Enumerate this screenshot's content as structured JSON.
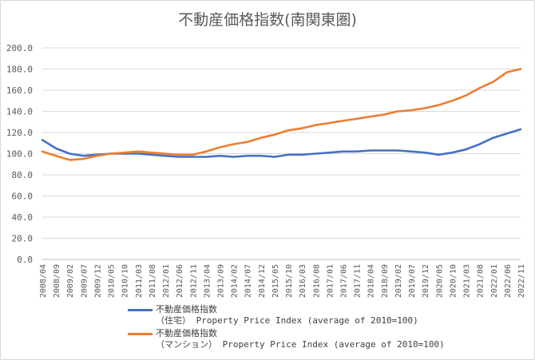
{
  "chart_data": {
    "type": "line",
    "title": "不動産価格指数(南関東圏)",
    "xlabel": "",
    "ylabel": "",
    "ylim": [
      0,
      200
    ],
    "yticks": [
      "0.0",
      "20.0",
      "40.0",
      "60.0",
      "80.0",
      "100.0",
      "120.0",
      "140.0",
      "160.0",
      "180.0",
      "200.0"
    ],
    "grid": true,
    "legend_position": "bottom",
    "x_start": "2008/04",
    "x_end": "2022/11",
    "x_tick_labels": [
      "2008/04",
      "2008/09",
      "2009/02",
      "2009/07",
      "2009/12",
      "2010/05",
      "2010/10",
      "2011/03",
      "2011/08",
      "2012/01",
      "2012/06",
      "2012/11",
      "2013/04",
      "2013/09",
      "2014/02",
      "2014/07",
      "2014/12",
      "2015/05",
      "2015/10",
      "2016/03",
      "2016/08",
      "2017/01",
      "2017/06",
      "2017/11",
      "2018/04",
      "2018/09",
      "2019/02",
      "2019/07",
      "2019/12",
      "2020/05",
      "2020/10",
      "2021/03",
      "2021/08",
      "2022/01",
      "2022/06",
      "2022/11"
    ],
    "series": [
      {
        "name_lines": [
          "不動産価格指数",
          "（住宅） Property Price Index (average of 2010=100)"
        ],
        "color": "#4472c4",
        "x": [
          "2008/04",
          "2008/09",
          "2009/02",
          "2009/07",
          "2009/12",
          "2010/05",
          "2010/10",
          "2011/03",
          "2011/08",
          "2012/01",
          "2012/06",
          "2012/11",
          "2013/04",
          "2013/09",
          "2014/02",
          "2014/07",
          "2014/12",
          "2015/05",
          "2015/10",
          "2016/03",
          "2016/08",
          "2017/01",
          "2017/06",
          "2017/11",
          "2018/04",
          "2018/09",
          "2019/02",
          "2019/07",
          "2019/12",
          "2020/05",
          "2020/10",
          "2021/03",
          "2021/08",
          "2022/01",
          "2022/06",
          "2022/11"
        ],
        "values": [
          113,
          105,
          100,
          98,
          99,
          100,
          100,
          100,
          99,
          98,
          97,
          97,
          97,
          98,
          97,
          98,
          98,
          97,
          99,
          99,
          100,
          101,
          102,
          102,
          103,
          103,
          103,
          102,
          101,
          99,
          101,
          104,
          109,
          115,
          119,
          123
        ]
      },
      {
        "name_lines": [
          "不動産価格指数",
          "（マンション） Property Price Index (average of 2010=100)"
        ],
        "color": "#ed7d31",
        "x": [
          "2008/04",
          "2008/09",
          "2009/02",
          "2009/07",
          "2009/12",
          "2010/05",
          "2010/10",
          "2011/03",
          "2011/08",
          "2012/01",
          "2012/06",
          "2012/11",
          "2013/04",
          "2013/09",
          "2014/02",
          "2014/07",
          "2014/12",
          "2015/05",
          "2015/10",
          "2016/03",
          "2016/08",
          "2017/01",
          "2017/06",
          "2017/11",
          "2018/04",
          "2018/09",
          "2019/02",
          "2019/07",
          "2019/12",
          "2020/05",
          "2020/10",
          "2021/03",
          "2021/08",
          "2022/01",
          "2022/06",
          "2022/11"
        ],
        "values": [
          102,
          98,
          94,
          95,
          98,
          100,
          101,
          102,
          101,
          100,
          99,
          99,
          102,
          106,
          109,
          111,
          115,
          118,
          122,
          124,
          127,
          129,
          131,
          133,
          135,
          137,
          140,
          141,
          143,
          146,
          150,
          155,
          162,
          168,
          177,
          180
        ]
      }
    ]
  }
}
